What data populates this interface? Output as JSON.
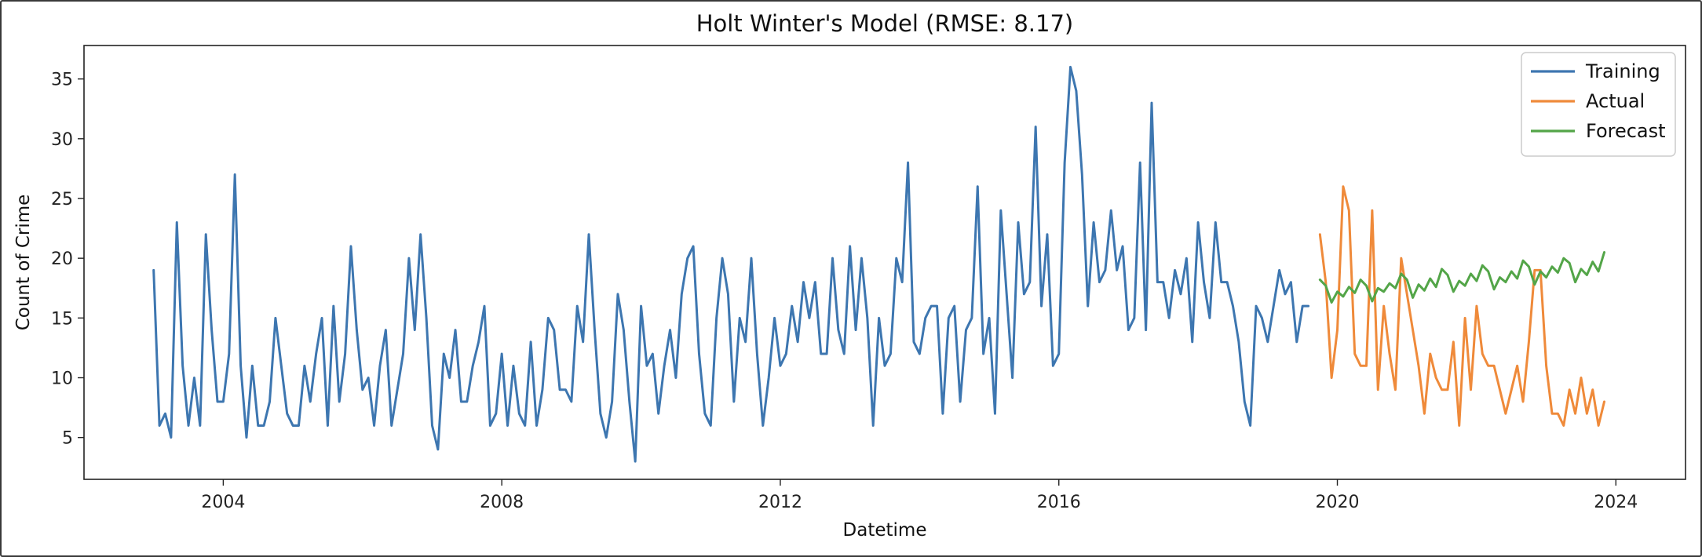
{
  "chart_data": {
    "type": "line",
    "title": "Holt Winter's Model (RMSE: 8.17)",
    "xlabel": "Datetime",
    "ylabel": "Count of Crime",
    "xlim": [
      2002,
      2025
    ],
    "ylim": [
      1.5,
      37.8
    ],
    "x_ticks": [
      2004,
      2008,
      2012,
      2016,
      2020,
      2024
    ],
    "y_ticks": [
      5,
      10,
      15,
      20,
      25,
      30,
      35
    ],
    "grid": false,
    "legend_position": "top-right",
    "x_start": 2003.0,
    "x_step_months": 1,
    "series": [
      {
        "name": "Training",
        "color": "#3d76b0",
        "start_index": 0,
        "values": [
          19,
          6,
          7,
          5,
          23,
          11,
          6,
          10,
          6,
          22,
          14,
          8,
          8,
          12,
          27,
          11,
          5,
          11,
          6,
          6,
          8,
          15,
          11,
          7,
          6,
          6,
          11,
          8,
          12,
          15,
          6,
          16,
          8,
          12,
          21,
          14,
          9,
          10,
          6,
          11,
          14,
          6,
          9,
          12,
          20,
          14,
          22,
          15,
          6,
          4,
          12,
          10,
          14,
          8,
          8,
          11,
          13,
          16,
          6,
          7,
          12,
          6,
          11,
          7,
          6,
          13,
          6,
          9,
          15,
          14,
          9,
          9,
          8,
          16,
          13,
          22,
          14,
          7,
          5,
          8,
          17,
          14,
          8,
          3,
          16,
          11,
          12,
          7,
          11,
          14,
          10,
          17,
          20,
          21,
          12,
          7,
          6,
          15,
          20,
          17,
          8,
          15,
          13,
          20,
          12,
          6,
          10,
          15,
          11,
          12,
          16,
          13,
          18,
          15,
          18,
          12,
          12,
          20,
          14,
          12,
          21,
          14,
          20,
          15,
          6,
          15,
          11,
          12,
          20,
          18,
          28,
          13,
          12,
          15,
          16,
          16,
          7,
          15,
          16,
          8,
          14,
          15,
          26,
          12,
          15,
          7,
          24,
          17,
          10,
          23,
          17,
          18,
          31,
          16,
          22,
          11,
          12,
          28,
          36,
          34,
          27,
          16,
          23,
          18,
          19,
          24,
          19,
          21,
          14,
          15,
          28,
          14,
          33,
          18,
          18,
          15,
          19,
          17,
          20,
          13,
          23,
          18,
          15,
          23,
          18,
          18,
          16,
          13,
          8,
          6,
          16,
          15,
          13,
          16,
          19,
          17,
          18,
          13,
          16,
          16
        ]
      },
      {
        "name": "Actual",
        "color": "#ef8a3a",
        "start_index": 201,
        "values": [
          22,
          18,
          10,
          14,
          26,
          24,
          12,
          11,
          11,
          24,
          9,
          16,
          12,
          9,
          20,
          17,
          14,
          11,
          7,
          12,
          10,
          9,
          9,
          13,
          6,
          15,
          9,
          16,
          12,
          11,
          11,
          9,
          7,
          9,
          11,
          8,
          13,
          19,
          19,
          11,
          7,
          7,
          6,
          9,
          7,
          10,
          7,
          9,
          6,
          8
        ]
      },
      {
        "name": "Forecast",
        "color": "#53a548",
        "start_index": 201,
        "values": [
          18.2,
          17.7,
          16.3,
          17.2,
          16.8,
          17.6,
          17.1,
          18.2,
          17.7,
          16.4,
          17.5,
          17.2,
          17.9,
          17.5,
          18.7,
          18.2,
          16.7,
          17.8,
          17.3,
          18.3,
          17.6,
          19.1,
          18.6,
          17.2,
          18.1,
          17.7,
          18.7,
          18.1,
          19.4,
          18.9,
          17.4,
          18.4,
          18.0,
          18.9,
          18.3,
          19.8,
          19.3,
          17.8,
          18.9,
          18.4,
          19.3,
          18.8,
          20.0,
          19.6,
          18.0,
          19.1,
          18.6,
          19.7,
          18.9,
          20.5
        ]
      }
    ]
  }
}
